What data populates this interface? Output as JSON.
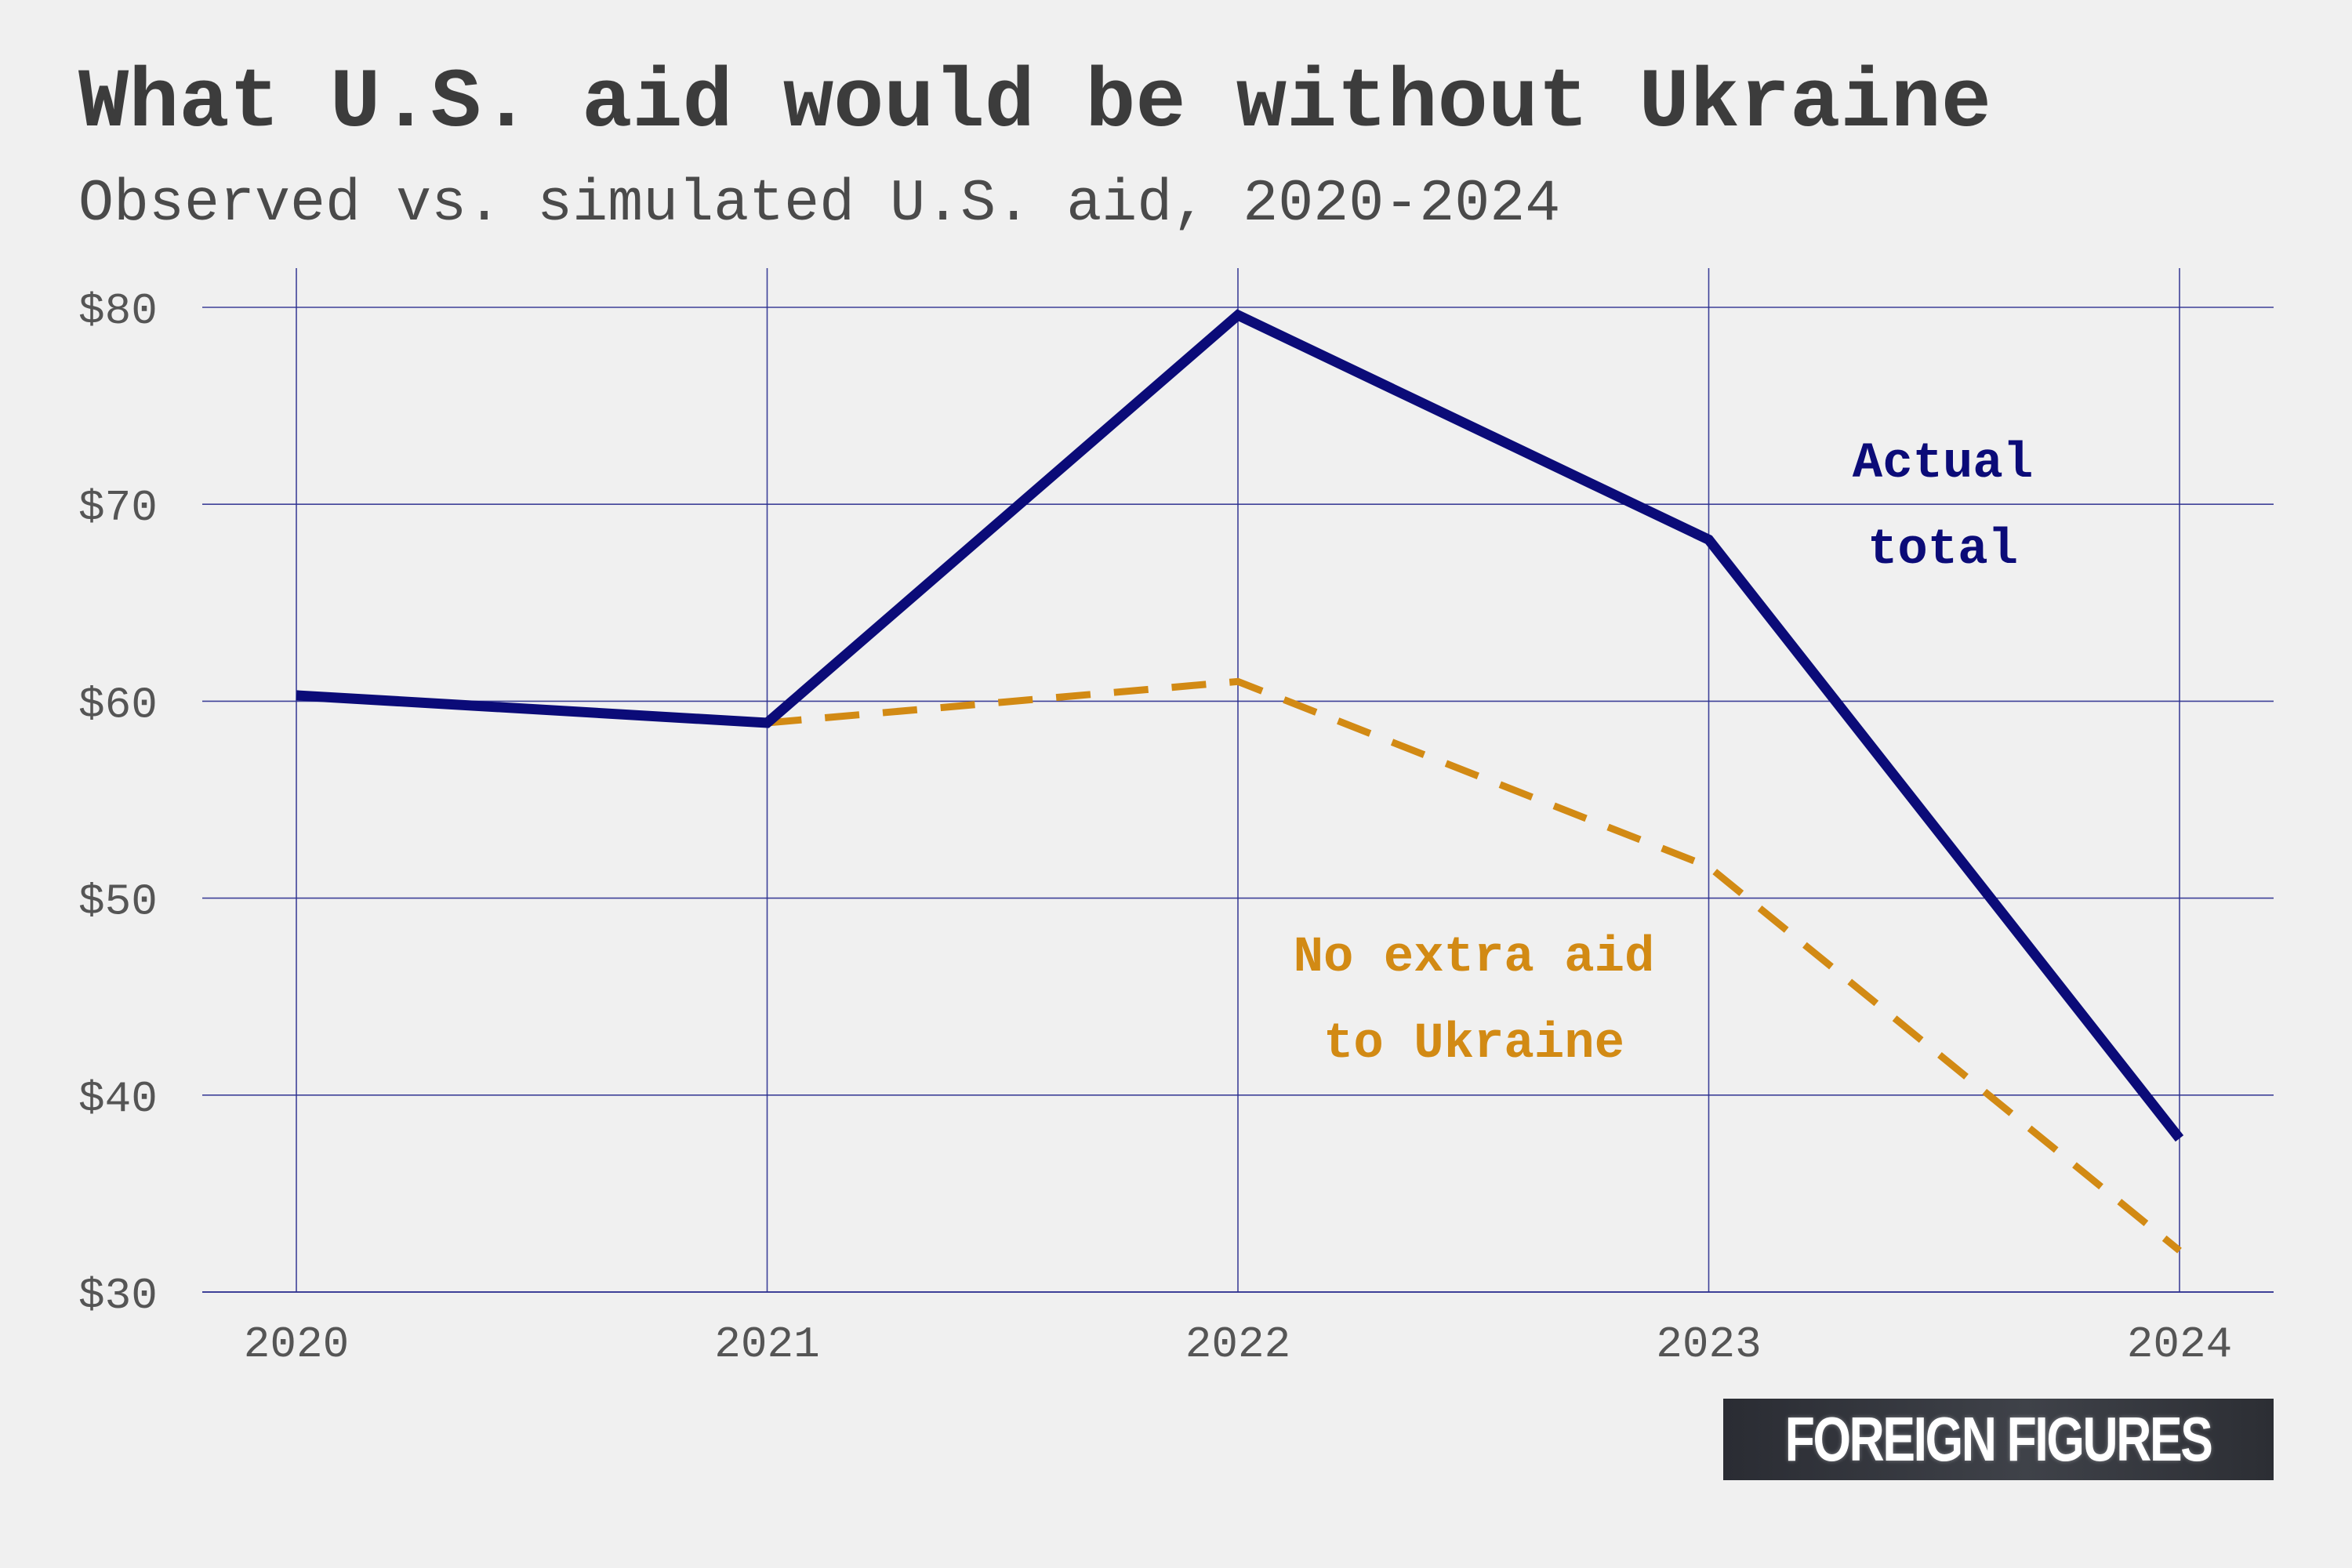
{
  "title": "What U.S. aid would be without Ukraine",
  "subtitle": "Observed vs. simulated U.S. aid, 2020-2024",
  "brand": "FOREIGN FIGURES",
  "colors": {
    "background": "#f0f0f0",
    "grid": "#2b2f8f",
    "actual": "#0b0b78",
    "simulated": "#d28a14",
    "tick_text": "#555555"
  },
  "chart_data": {
    "type": "line",
    "title": "What U.S. aid would be without Ukraine",
    "subtitle": "Observed vs. simulated U.S. aid, 2020-2024",
    "xlabel": "",
    "ylabel": "",
    "x": [
      2020,
      2021,
      2022,
      2023,
      2024
    ],
    "x_tick_labels": [
      "2020",
      "2021",
      "2022",
      "2023",
      "2024"
    ],
    "y_tick_labels": [
      "$30",
      "$40",
      "$50",
      "$60",
      "$70",
      "$80"
    ],
    "y_ticks": [
      30,
      40,
      50,
      60,
      70,
      80
    ],
    "ylim": [
      30,
      81.5
    ],
    "xlim": [
      2019.8,
      2024.2
    ],
    "grid": true,
    "legend": "none",
    "series": [
      {
        "name": "Actual total",
        "style": "solid",
        "x": [
          2020,
          2021,
          2022,
          2023,
          2024
        ],
        "values": [
          60.3,
          58.9,
          79.6,
          68.2,
          37.8
        ]
      },
      {
        "name": "No extra aid to Ukraine",
        "style": "dashed",
        "x": [
          2021,
          2022,
          2023,
          2024
        ],
        "values": [
          58.9,
          61.0,
          51.6,
          32.1
        ]
      }
    ],
    "annotations": [
      {
        "series": "Actual total",
        "lines": [
          "Actual",
          "total"
        ]
      },
      {
        "series": "No extra aid to Ukraine",
        "lines": [
          "No extra aid",
          "to Ukraine"
        ]
      }
    ]
  }
}
